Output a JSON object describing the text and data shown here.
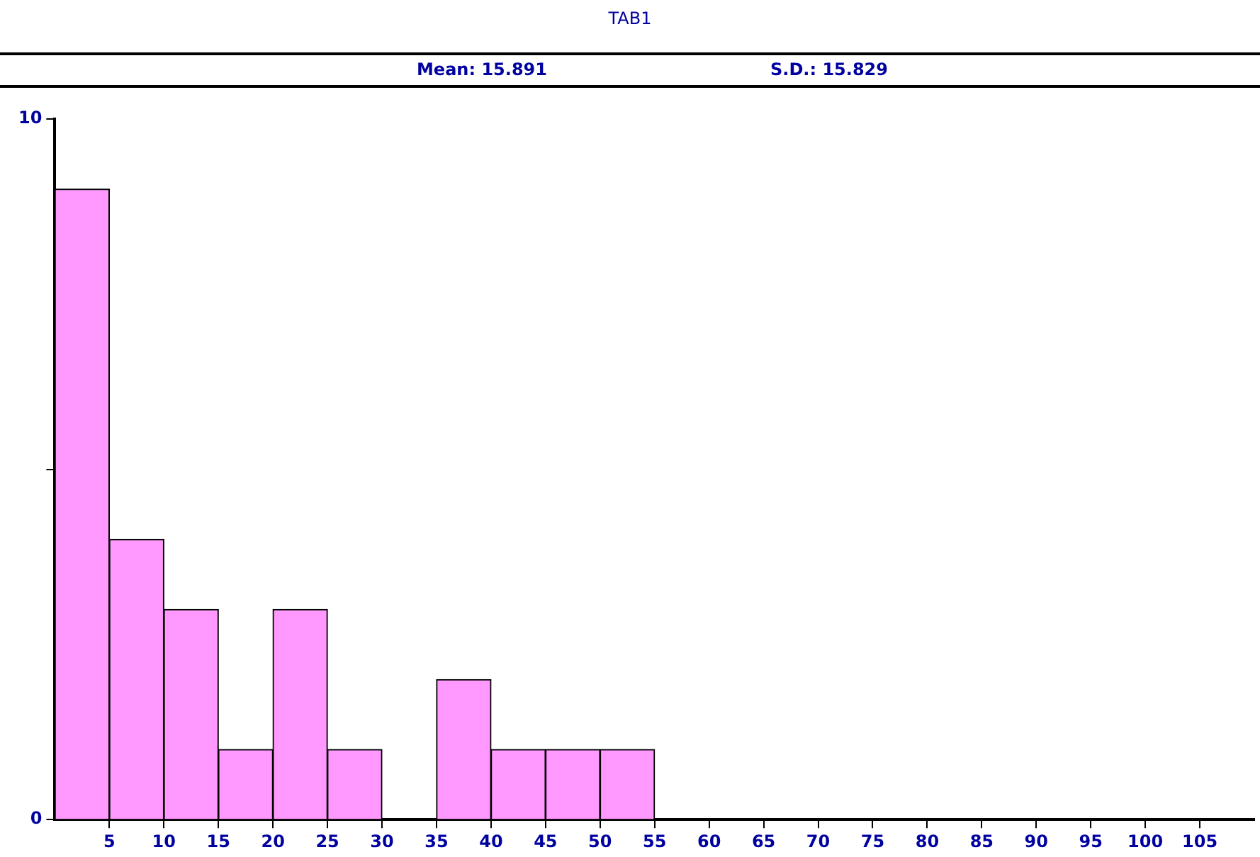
{
  "chart_data": {
    "type": "histogram",
    "title": "TAB1",
    "annotations": [
      "Mean: 15.891",
      "S.D.: 15.829"
    ],
    "bins": [
      0,
      5,
      10,
      15,
      20,
      25,
      30,
      35,
      40,
      45,
      50,
      55,
      60,
      65,
      70,
      75,
      80,
      85,
      90,
      95,
      100,
      105,
      110
    ],
    "values": [
      9,
      4,
      3,
      1,
      3,
      1,
      0,
      2,
      1,
      1,
      1,
      0,
      0,
      0,
      0,
      0,
      0,
      0,
      0,
      0,
      0,
      0
    ],
    "color": "#ff99ff",
    "xlim": [
      0,
      110
    ],
    "xticks": [
      5,
      10,
      15,
      20,
      25,
      30,
      35,
      40,
      45,
      50,
      55,
      60,
      65,
      70,
      75,
      80,
      85,
      90,
      95,
      100,
      105
    ],
    "ylim": [
      0,
      10
    ],
    "yticks": [
      0,
      {
        "value": 5,
        "label": null
      },
      10
    ],
    "grid": false,
    "legend": false
  }
}
